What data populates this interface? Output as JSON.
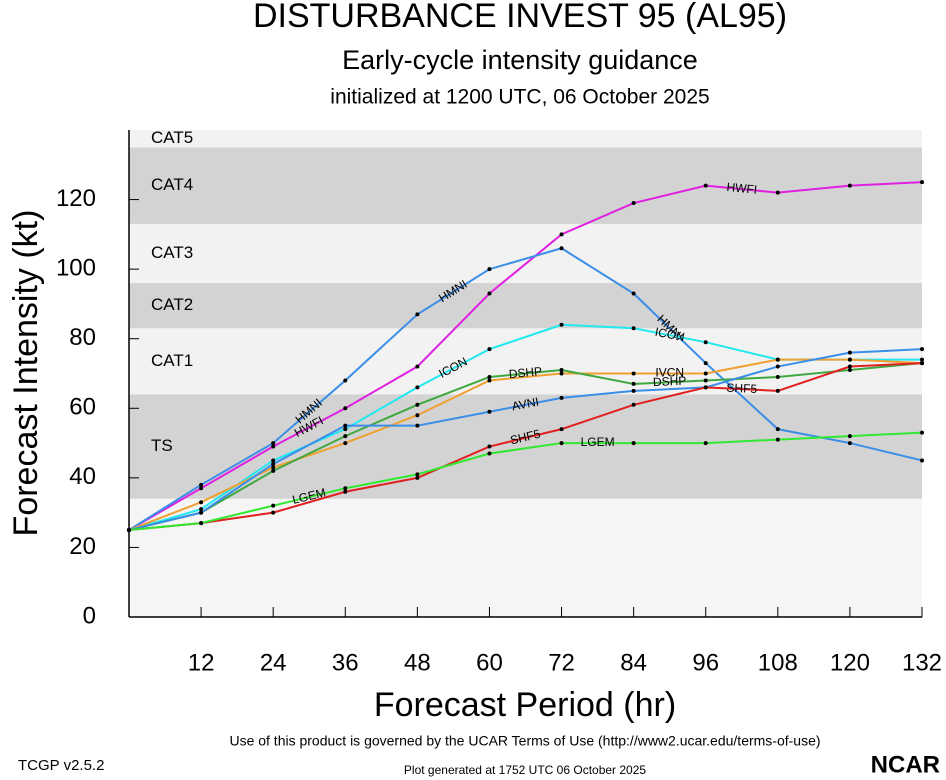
{
  "chart_data": {
    "type": "line",
    "title": "DISTURBANCE INVEST 95 (AL95)",
    "subtitle": "Early-cycle intensity guidance",
    "initialized": "initialized at 1200 UTC, 06 October 2025",
    "x_label": "Forecast Period (hr)",
    "y_label": "Forecast Intensity (kt)",
    "xlim": [
      0,
      132
    ],
    "ylim": [
      0,
      140
    ],
    "xticks": [
      12,
      24,
      36,
      48,
      60,
      72,
      84,
      96,
      108,
      120,
      132
    ],
    "yticks": [
      0,
      20,
      40,
      60,
      80,
      100,
      120
    ],
    "bands": [
      {
        "label": "TS",
        "from": 34,
        "to": 64,
        "color": "#d3d3d3"
      },
      {
        "label": "CAT1",
        "from": 64,
        "to": 83,
        "color": "#f2f2f2"
      },
      {
        "label": "CAT2",
        "from": 83,
        "to": 96,
        "color": "#d3d3d3"
      },
      {
        "label": "CAT3",
        "from": 96,
        "to": 113,
        "color": "#f2f2f2"
      },
      {
        "label": "CAT4",
        "from": 113,
        "to": 135,
        "color": "#d3d3d3"
      },
      {
        "label": "CAT5",
        "from": 135,
        "to": 140,
        "color": "#f2f2f2"
      }
    ],
    "x": [
      0,
      12,
      24,
      36,
      48,
      60,
      72,
      84,
      96,
      108,
      120,
      132
    ],
    "series": [
      {
        "name": "HWFI",
        "color": "#e020e0",
        "values": [
          25,
          37,
          49,
          60,
          72,
          93,
          110,
          119,
          124,
          122,
          124,
          125
        ]
      },
      {
        "name": "HMNI",
        "color": "#3a8ee8",
        "values": [
          25,
          38,
          50,
          68,
          87,
          100,
          106,
          93,
          73,
          54,
          50,
          45
        ]
      },
      {
        "name": "ICON",
        "color": "#20e8f0",
        "values": [
          25,
          31,
          45,
          54,
          66,
          77,
          84,
          83,
          79,
          74,
          74,
          74
        ]
      },
      {
        "name": "IVCN",
        "color": "#f0a030",
        "values": [
          25,
          33,
          43,
          50,
          58,
          68,
          70,
          70,
          70,
          74,
          74,
          73
        ]
      },
      {
        "name": "DSHP",
        "color": "#40a840",
        "values": [
          25,
          30,
          42,
          52,
          61,
          69,
          71,
          67,
          68,
          69,
          71,
          73
        ]
      },
      {
        "name": "AVNI",
        "color": "#3a8ee8",
        "values": [
          25,
          30,
          44,
          55,
          55,
          59,
          63,
          65,
          66,
          72,
          76,
          77
        ]
      },
      {
        "name": "SHF5",
        "color": "#e02020",
        "values": [
          25,
          27,
          30,
          36,
          40,
          49,
          54,
          61,
          66,
          65,
          72,
          73
        ]
      },
      {
        "name": "LGEM",
        "color": "#30e830",
        "values": [
          25,
          27,
          32,
          37,
          41,
          47,
          50,
          50,
          50,
          51,
          52,
          53
        ]
      }
    ],
    "terms": "Use of this product is governed by the UCAR Terms of Use (http://www2.ucar.edu/terms-of-use)",
    "version": "TCGP v2.5.2",
    "generated": "Plot generated at 1752 UTC   06 October 2025",
    "logo": "NCAR"
  }
}
